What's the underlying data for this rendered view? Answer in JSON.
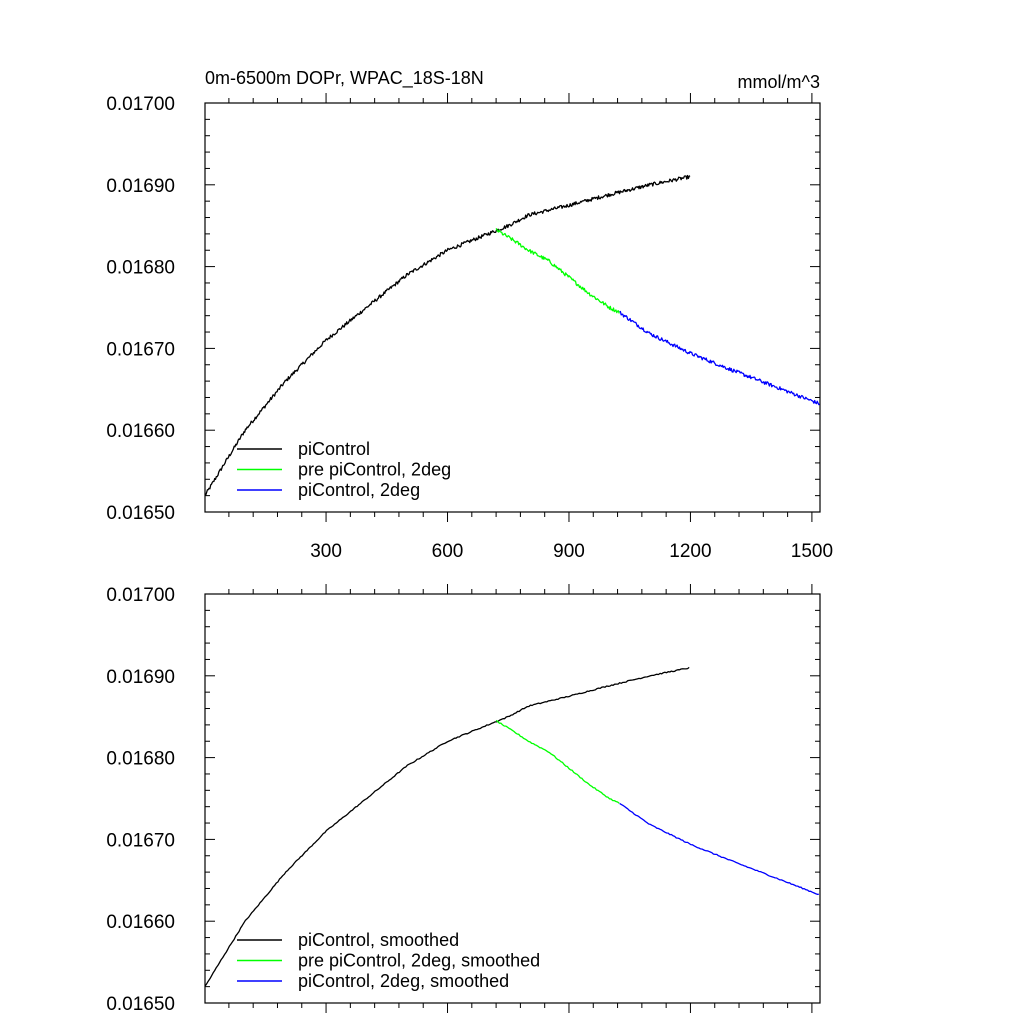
{
  "chart_data": [
    {
      "type": "line",
      "title": "0m-6500m DOPr, WPAC_18S-18N",
      "units": "mmol/m^3",
      "xlabel": "",
      "ylabel": "",
      "xlim": [
        1,
        1520
      ],
      "ylim": [
        0.0165,
        0.017
      ],
      "x_ticks": [
        300,
        600,
        900,
        1200,
        1500
      ],
      "x_tick_labels": [
        "300",
        "600",
        "900",
        "1200",
        "1500"
      ],
      "y_ticks": [
        0.0165,
        0.0166,
        0.0167,
        0.0168,
        0.0169,
        0.017
      ],
      "y_tick_labels": [
        "0.01650",
        "0.01660",
        "0.01670",
        "0.01680",
        "0.01690",
        "0.01700"
      ],
      "legend_position": "bottom-left",
      "noisy": true,
      "series": [
        {
          "name": "piControl",
          "color": "#000000",
          "x": [
            1,
            50,
            100,
            200,
            300,
            400,
            500,
            600,
            700,
            750,
            800,
            900,
            1000,
            1100,
            1200
          ],
          "values": [
            0.01652,
            0.01656,
            0.0166,
            0.01666,
            0.01671,
            0.01675,
            0.01679,
            0.01682,
            0.01684,
            0.01685,
            0.016863,
            0.016875,
            0.016888,
            0.0169,
            0.01691
          ]
        },
        {
          "name": "pre piControl, 2deg",
          "color": "#00ff00",
          "x": [
            720,
            760,
            800,
            850,
            900,
            950,
            1000,
            1025
          ],
          "values": [
            0.016845,
            0.016833,
            0.01682,
            0.016807,
            0.016787,
            0.016767,
            0.01675,
            0.016744
          ]
        },
        {
          "name": "piControl, 2deg",
          "color": "#0000ff",
          "x": [
            1025,
            1100,
            1200,
            1300,
            1400,
            1520
          ],
          "values": [
            0.016744,
            0.016718,
            0.016694,
            0.016674,
            0.016655,
            0.016632
          ]
        }
      ]
    },
    {
      "type": "line",
      "title": "",
      "xlabel": "",
      "ylabel": "",
      "xlim": [
        1,
        1520
      ],
      "ylim": [
        0.0165,
        0.017
      ],
      "x_ticks": [
        300,
        600,
        900,
        1200,
        1500
      ],
      "x_tick_labels": [],
      "y_ticks": [
        0.0165,
        0.0166,
        0.0167,
        0.0168,
        0.0169,
        0.017
      ],
      "y_tick_labels": [
        "0.01650",
        "0.01660",
        "0.01670",
        "0.01680",
        "0.01690",
        "0.01700"
      ],
      "legend_position": "bottom-left",
      "noisy": false,
      "series": [
        {
          "name": "piControl, smoothed",
          "color": "#000000",
          "x": [
            1,
            50,
            100,
            200,
            300,
            400,
            500,
            600,
            700,
            750,
            800,
            900,
            1000,
            1100,
            1200
          ],
          "values": [
            0.01652,
            0.01656,
            0.0166,
            0.01666,
            0.01671,
            0.01675,
            0.01679,
            0.01682,
            0.01684,
            0.01685,
            0.016863,
            0.016875,
            0.016888,
            0.0169,
            0.01691
          ]
        },
        {
          "name": "pre piControl, 2deg, smoothed",
          "color": "#00ff00",
          "x": [
            720,
            760,
            800,
            850,
            900,
            950,
            1000,
            1025
          ],
          "values": [
            0.016845,
            0.016833,
            0.01682,
            0.016807,
            0.016787,
            0.016767,
            0.01675,
            0.016744
          ]
        },
        {
          "name": "piControl, 2deg, smoothed",
          "color": "#0000ff",
          "x": [
            1025,
            1100,
            1200,
            1300,
            1400,
            1520
          ],
          "values": [
            0.016744,
            0.016718,
            0.016694,
            0.016674,
            0.016655,
            0.016632
          ]
        }
      ]
    }
  ]
}
